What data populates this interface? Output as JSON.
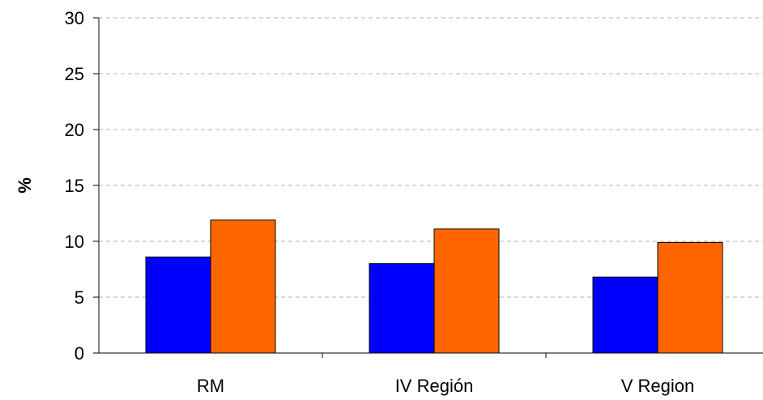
{
  "chart_data": {
    "type": "bar",
    "categories": [
      "RM",
      "IV Región",
      "V Region"
    ],
    "series": [
      {
        "values": [
          8.6,
          8.0,
          6.8
        ],
        "color": "#0000ff"
      },
      {
        "values": [
          11.9,
          11.1,
          9.9
        ],
        "color": "#ff6600"
      }
    ],
    "title": "",
    "xlabel": "",
    "ylabel": "%",
    "ylim": [
      0,
      30
    ],
    "yticks": [
      0,
      5,
      10,
      15,
      20,
      25,
      30
    ],
    "grid": true,
    "grid_style": "dashed",
    "legend": "none"
  }
}
